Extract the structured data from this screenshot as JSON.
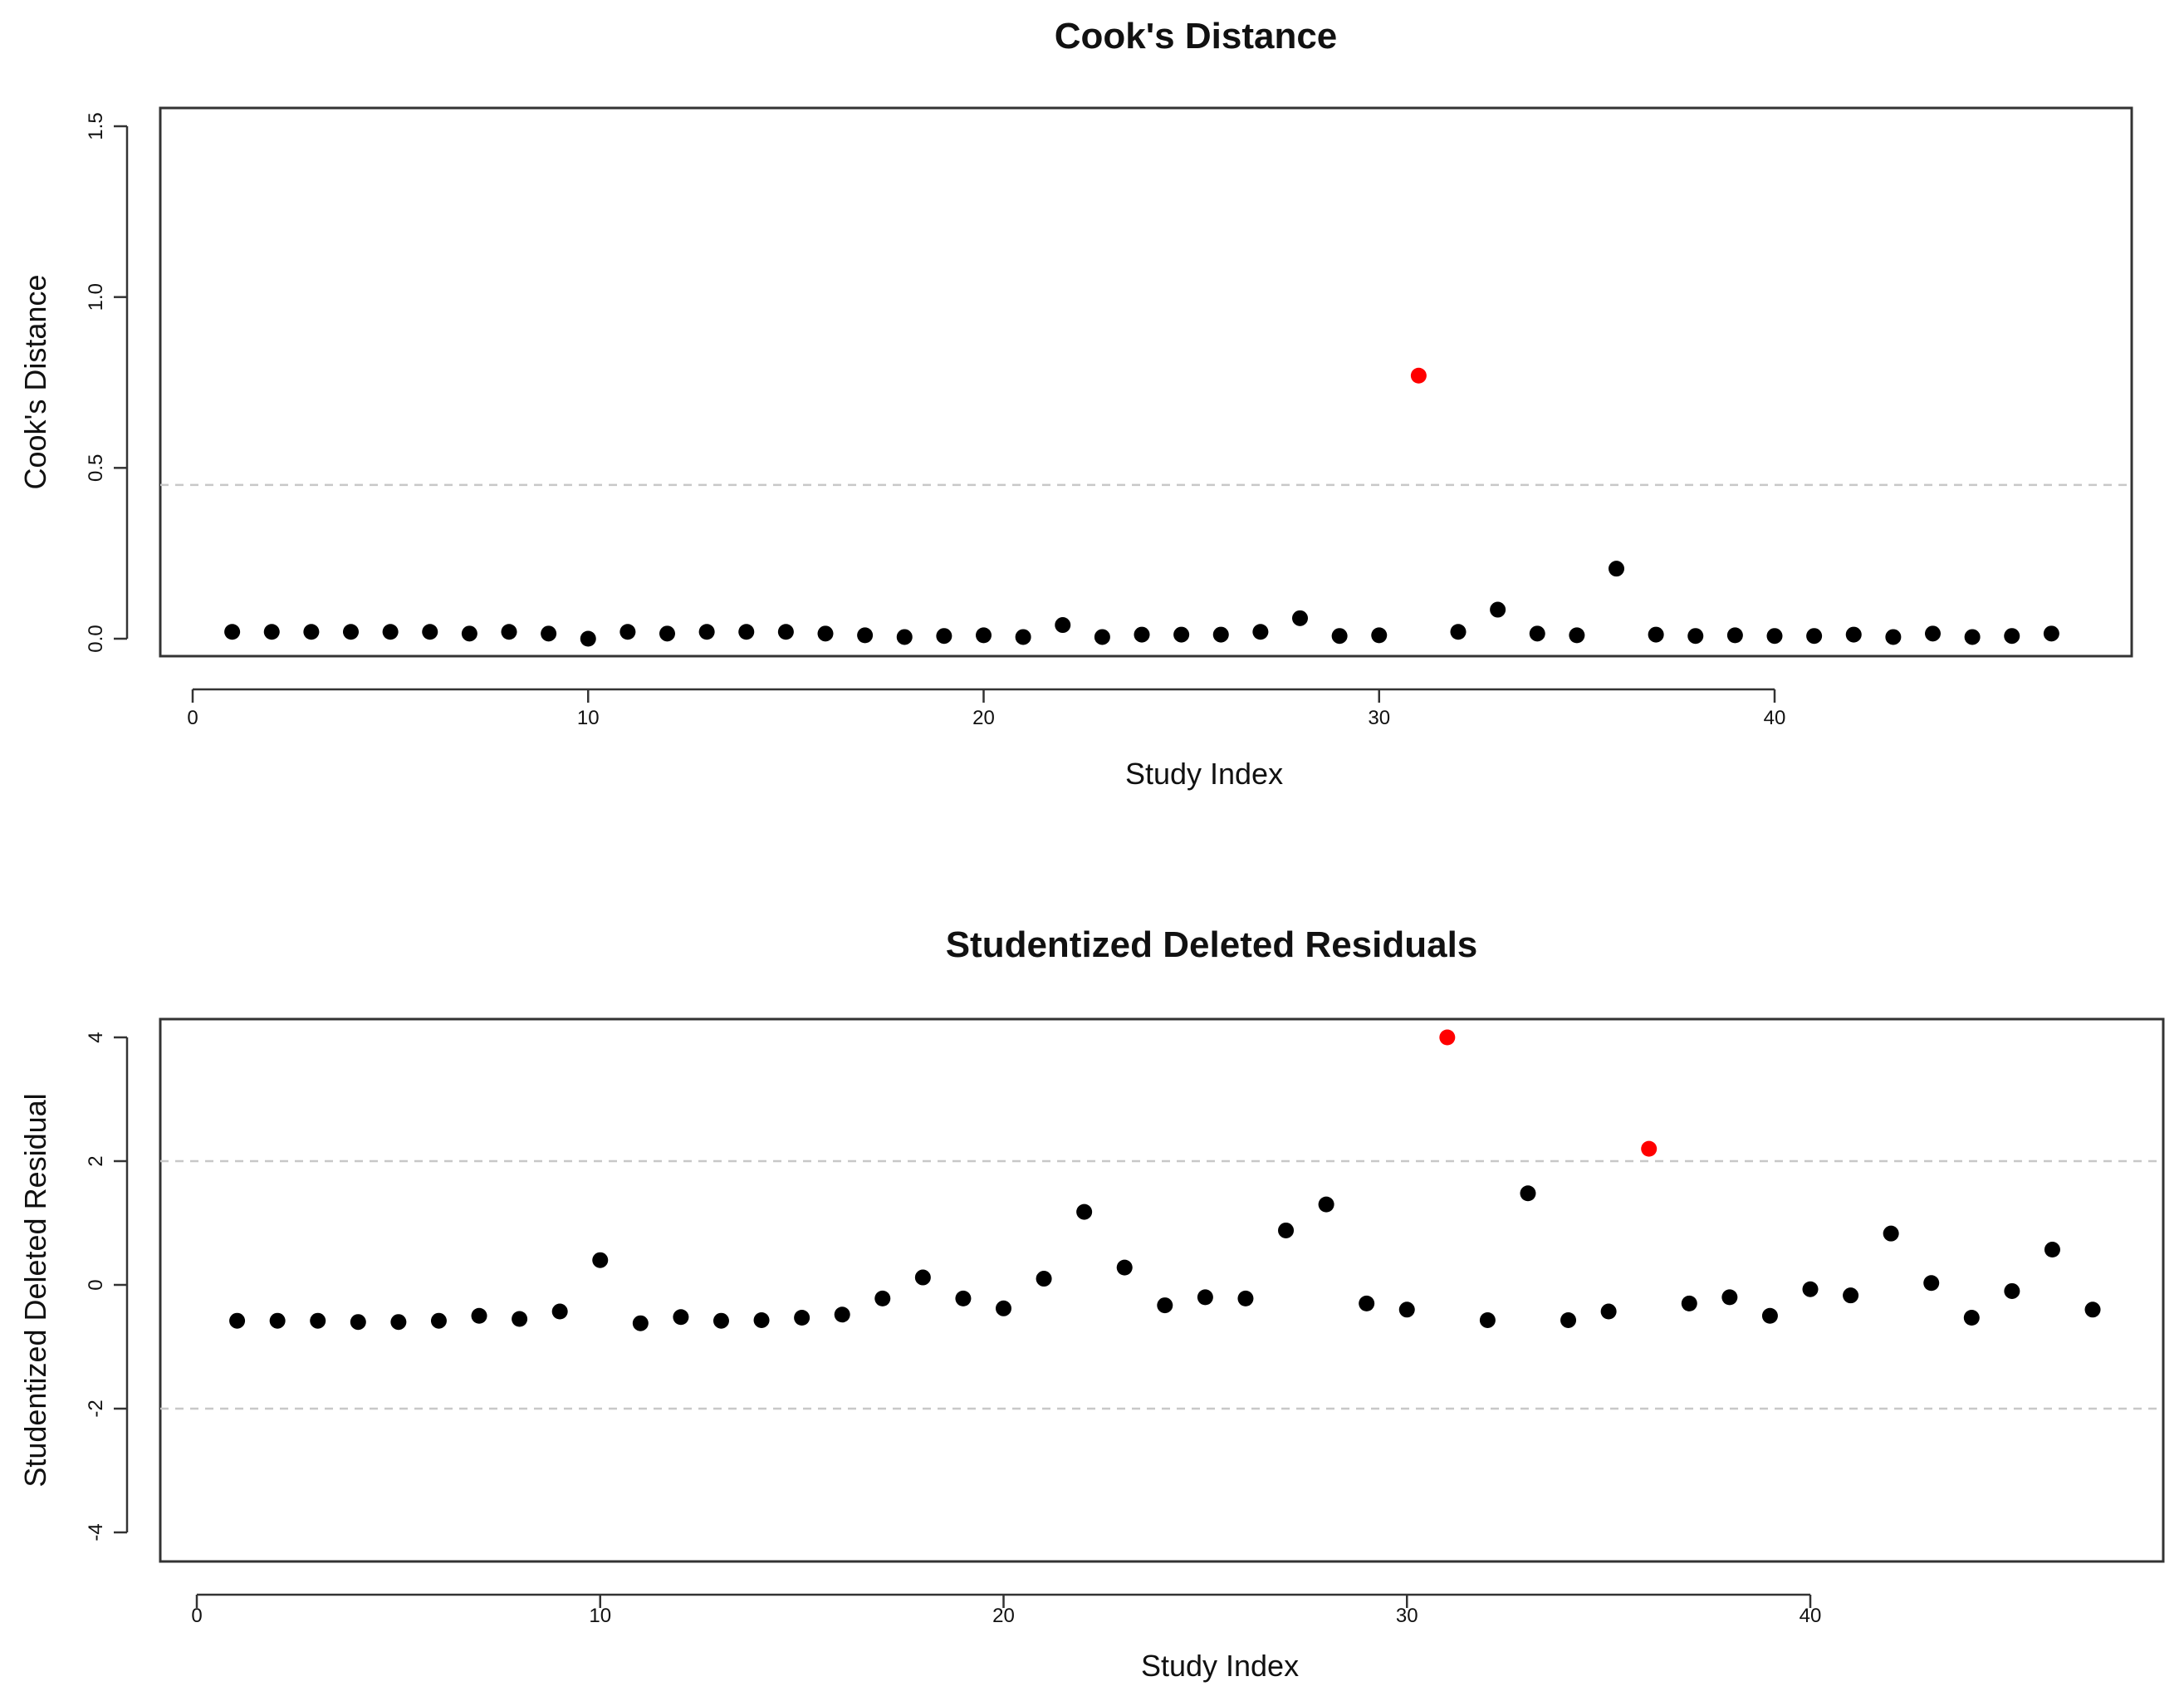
{
  "chart_data": [
    {
      "type": "scatter",
      "title": "Cook's Distance",
      "xlabel": "Study Index",
      "ylabel": "Cook's Distance",
      "xlim": [
        0,
        48
      ],
      "ylim": [
        0,
        1.5
      ],
      "x_ticks": [
        0,
        10,
        20,
        30,
        40
      ],
      "x_tick_labels": [
        "0",
        "10",
        "20",
        "30",
        "40"
      ],
      "y_ticks": [
        0,
        0.5,
        1.0,
        1.5
      ],
      "y_tick_labels": [
        "0.0",
        "0.5",
        "1.0",
        "1.5"
      ],
      "reference_lines": [
        0.45
      ],
      "grid": false,
      "point_color": "#000000",
      "highlight_color": "#ff0000",
      "x": [
        1,
        2,
        3,
        4,
        5,
        6,
        7,
        8,
        9,
        10,
        11,
        12,
        13,
        14,
        15,
        16,
        17,
        18,
        19,
        20,
        21,
        22,
        23,
        24,
        25,
        26,
        27,
        28,
        29,
        30,
        31,
        32,
        33,
        34,
        35,
        36,
        37,
        38,
        39,
        40,
        41,
        42,
        43,
        44,
        45,
        46,
        47
      ],
      "y": [
        0.02,
        0.02,
        0.02,
        0.02,
        0.02,
        0.02,
        0.015,
        0.02,
        0.015,
        0.0,
        0.02,
        0.015,
        0.02,
        0.02,
        0.02,
        0.015,
        0.01,
        0.005,
        0.008,
        0.01,
        0.005,
        0.04,
        0.005,
        0.012,
        0.012,
        0.012,
        0.02,
        0.06,
        0.008,
        0.01,
        0.77,
        0.02,
        0.085,
        0.015,
        0.01,
        0.205,
        0.012,
        0.008,
        0.01,
        0.008,
        0.008,
        0.012,
        0.005,
        0.015,
        0.005,
        0.008,
        0.015
      ],
      "highlighted_x": [
        31
      ]
    },
    {
      "type": "scatter",
      "title": "Studentized Deleted Residuals",
      "xlabel": "Study Index",
      "ylabel": "Studentized Deleted Residual",
      "xlim": [
        0,
        48
      ],
      "ylim": [
        -4,
        4
      ],
      "x_ticks": [
        0,
        10,
        20,
        30,
        40
      ],
      "x_tick_labels": [
        "0",
        "10",
        "20",
        "30",
        "40"
      ],
      "y_ticks": [
        -4,
        -2,
        0,
        2,
        4
      ],
      "y_tick_labels": [
        "-4",
        "-2",
        "0",
        "2",
        "4"
      ],
      "reference_lines": [
        -2,
        2
      ],
      "grid": false,
      "point_color": "#000000",
      "highlight_color": "#ff0000",
      "x": [
        1,
        2,
        3,
        4,
        5,
        6,
        7,
        8,
        9,
        10,
        11,
        12,
        13,
        14,
        15,
        16,
        17,
        18,
        19,
        20,
        21,
        22,
        23,
        24,
        25,
        26,
        27,
        28,
        29,
        30,
        31,
        32,
        33,
        34,
        35,
        36,
        37,
        38,
        39,
        40,
        41,
        42,
        43,
        44,
        45,
        46,
        47
      ],
      "y": [
        -0.58,
        -0.58,
        -0.58,
        -0.6,
        -0.6,
        -0.58,
        -0.5,
        -0.55,
        -0.43,
        0.4,
        -0.62,
        -0.52,
        -0.58,
        -0.57,
        -0.53,
        -0.48,
        -0.22,
        0.12,
        -0.22,
        -0.38,
        0.1,
        1.18,
        0.28,
        -0.33,
        -0.2,
        -0.22,
        0.88,
        1.3,
        -0.3,
        -0.4,
        4.0,
        -0.57,
        1.48,
        -0.57,
        -0.43,
        2.2,
        -0.3,
        -0.2,
        -0.5,
        -0.07,
        -0.17,
        0.83,
        0.03,
        -0.53,
        -0.1,
        0.57,
        -0.4
      ],
      "highlighted_x": [
        31,
        36
      ]
    }
  ]
}
